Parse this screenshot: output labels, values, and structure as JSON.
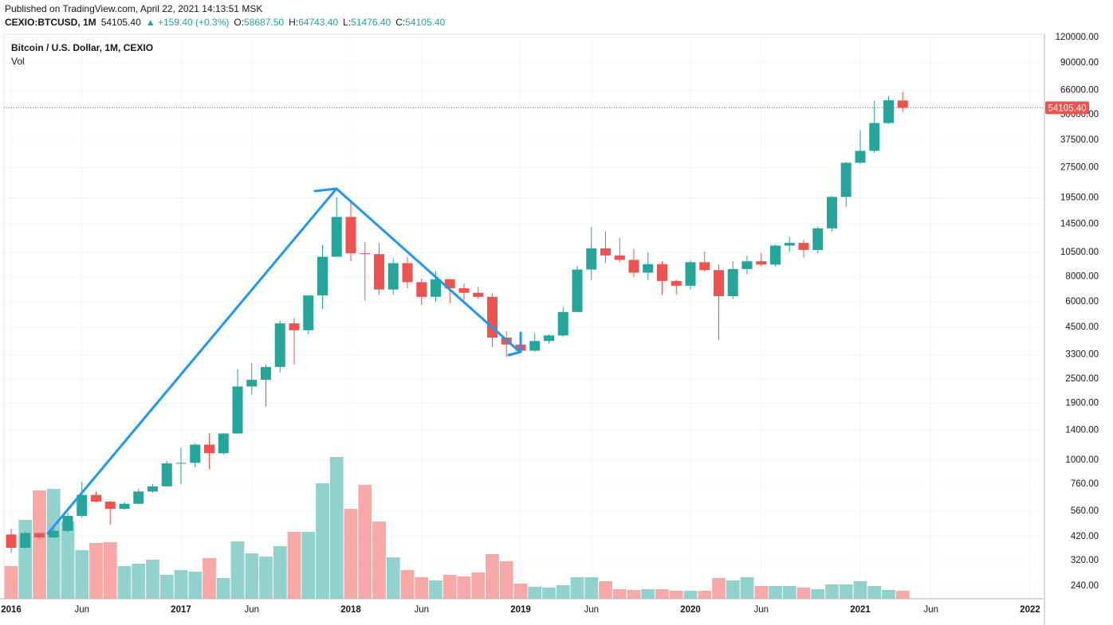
{
  "header": {
    "published": "Published on TradingView.com, April 22, 2021 14:13:51 MSK",
    "symbol": "CEXIO:BTCUSD, 1M",
    "last": "54105.40",
    "change": "▲ +159.40 (+0.3%)",
    "ohlc": [
      {
        "label": "O:",
        "value": "58687.50"
      },
      {
        "label": "H:",
        "value": "64743.40"
      },
      {
        "label": "L:",
        "value": "51476.40"
      },
      {
        "label": "C:",
        "value": "54105.40"
      }
    ]
  },
  "chart_data": {
    "type": "candlestick",
    "title": "Bitcoin / U.S. Dollar, 1M, CEXIO",
    "volume_label": "Vol",
    "up_color": "#26a69a",
    "down_color": "#ef5350",
    "log_scale": true,
    "grid": true,
    "x": [
      "2016-01",
      "2016-02",
      "2016-03",
      "2016-04",
      "2016-05",
      "2016-06",
      "2016-07",
      "2016-08",
      "2016-09",
      "2016-10",
      "2016-11",
      "2016-12",
      "2017-01",
      "2017-02",
      "2017-03",
      "2017-04",
      "2017-05",
      "2017-06",
      "2017-07",
      "2017-08",
      "2017-09",
      "2017-10",
      "2017-11",
      "2017-12",
      "2018-01",
      "2018-02",
      "2018-03",
      "2018-04",
      "2018-05",
      "2018-06",
      "2018-07",
      "2018-08",
      "2018-09",
      "2018-10",
      "2018-11",
      "2018-12",
      "2019-01",
      "2019-02",
      "2019-03",
      "2019-04",
      "2019-05",
      "2019-06",
      "2019-07",
      "2019-08",
      "2019-09",
      "2019-10",
      "2019-11",
      "2019-12",
      "2020-01",
      "2020-02",
      "2020-03",
      "2020-04",
      "2020-05",
      "2020-06",
      "2020-07",
      "2020-08",
      "2020-09",
      "2020-10",
      "2020-11",
      "2020-12",
      "2021-01",
      "2021-02",
      "2021-03",
      "2021-04"
    ],
    "open": [
      430,
      370,
      437,
      416,
      448,
      531,
      673,
      624,
      575,
      609,
      700,
      742,
      963,
      968,
      1190,
      1080,
      1350,
      2300,
      2480,
      2870,
      4700,
      4350,
      6450,
      10000,
      15700,
      10400,
      10300,
      6900,
      9300,
      7500,
      6350,
      7750,
      7000,
      6650,
      6350,
      4000,
      3700,
      3450,
      3850,
      4100,
      5350,
      8650,
      11000,
      10150,
      9650,
      8350,
      9200,
      7600,
      7200,
      9400,
      8600,
      6400,
      8700,
      9500,
      9150,
      11350,
      11700,
      10800,
      13800,
      19700,
      29000,
      33200,
      45500,
      58687.5
    ],
    "high": [
      460,
      445,
      440,
      470,
      550,
      780,
      700,
      630,
      620,
      720,
      760,
      990,
      1150,
      1210,
      1350,
      1360,
      2790,
      3000,
      2950,
      4850,
      5000,
      6450,
      11400,
      19600,
      18900,
      11800,
      11700,
      9800,
      10000,
      7800,
      8500,
      7800,
      7400,
      7100,
      6600,
      4300,
      4200,
      4200,
      4150,
      5650,
      9000,
      14000,
      13300,
      12400,
      10900,
      10500,
      9500,
      7700,
      9600,
      10600,
      9200,
      9500,
      10100,
      10400,
      11500,
      12500,
      12100,
      14100,
      19900,
      29300,
      42000,
      58500,
      61800,
      64743.4
    ],
    "low": [
      350,
      365,
      405,
      412,
      440,
      520,
      620,
      480,
      570,
      605,
      690,
      740,
      760,
      920,
      900,
      1060,
      1350,
      2100,
      1830,
      2700,
      2950,
      4150,
      5550,
      10000,
      9500,
      6100,
      6500,
      6500,
      7000,
      5800,
      6000,
      5900,
      6100,
      6200,
      3600,
      3200,
      3400,
      3400,
      3750,
      4050,
      5350,
      7700,
      9300,
      9400,
      7900,
      7700,
      6500,
      6500,
      6900,
      8450,
      3900,
      6200,
      8200,
      8950,
      8950,
      10550,
      9900,
      10400,
      13300,
      17600,
      28700,
      32400,
      45000,
      51476.4
    ],
    "close": [
      370,
      437,
      416,
      448,
      531,
      673,
      624,
      575,
      609,
      700,
      742,
      963,
      968,
      1190,
      1080,
      1350,
      2300,
      2480,
      2870,
      4700,
      4350,
      6450,
      10000,
      15700,
      10400,
      10300,
      6900,
      9300,
      7500,
      6350,
      7750,
      7000,
      6650,
      6350,
      4000,
      3700,
      3450,
      3850,
      4100,
      5350,
      8650,
      11000,
      10150,
      9650,
      8350,
      9200,
      7600,
      7200,
      9400,
      8600,
      6400,
      8700,
      9500,
      9150,
      11350,
      11700,
      10800,
      13800,
      19700,
      29000,
      33200,
      45500,
      58900,
      54105.4
    ],
    "volume": [
      41,
      99,
      136,
      138,
      97,
      61,
      70,
      71,
      41,
      44,
      49,
      30,
      36,
      34,
      51,
      26,
      72,
      57,
      53,
      66,
      84,
      84,
      145,
      178,
      113,
      143,
      97,
      52,
      36,
      27,
      23,
      30,
      28,
      33,
      56,
      47,
      19,
      15,
      14,
      17,
      27,
      27,
      22,
      12,
      11,
      12,
      12,
      10,
      10,
      10,
      26,
      23,
      27,
      16,
      16,
      16,
      14,
      12,
      18,
      18,
      22,
      16,
      11,
      10
    ],
    "volume_lim": [
      0,
      200
    ],
    "ylim": [
      207.7,
      123300
    ],
    "yticks": [
      {
        "value": 120000,
        "label": "120000.00"
      },
      {
        "value": 90000,
        "label": "90000.00"
      },
      {
        "value": 66000,
        "label": "66000.00"
      },
      {
        "value": 50000,
        "label": "50000.00"
      },
      {
        "value": 37500,
        "label": "37500.00"
      },
      {
        "value": 27500,
        "label": "27500.00"
      },
      {
        "value": 19500,
        "label": "19500.00"
      },
      {
        "value": 14500,
        "label": "14500.00"
      },
      {
        "value": 10500,
        "label": "10500.00"
      },
      {
        "value": 8000,
        "label": "8000.00"
      },
      {
        "value": 6000,
        "label": "6000.00"
      },
      {
        "value": 4500,
        "label": "4500.00"
      },
      {
        "value": 3300,
        "label": "3300.00"
      },
      {
        "value": 2500,
        "label": "2500.00"
      },
      {
        "value": 1900,
        "label": "1900.00"
      },
      {
        "value": 1400,
        "label": "1400.00"
      },
      {
        "value": 1000,
        "label": "1000.00"
      },
      {
        "value": 760,
        "label": "760.00"
      },
      {
        "value": 560,
        "label": "560.00"
      },
      {
        "value": 420,
        "label": "420.00"
      },
      {
        "value": 320,
        "label": "320.00"
      },
      {
        "value": 240,
        "label": "240.00"
      }
    ],
    "xticks": [
      {
        "value": "2016-01",
        "label": "2016"
      },
      {
        "value": "2016-06",
        "label": "Jun"
      },
      {
        "value": "2017-01",
        "label": "2017"
      },
      {
        "value": "2017-06",
        "label": "Jun"
      },
      {
        "value": "2018-01",
        "label": "2018"
      },
      {
        "value": "2018-06",
        "label": "Jun"
      },
      {
        "value": "2019-01",
        "label": "2019"
      },
      {
        "value": "2019-06",
        "label": "Jun"
      },
      {
        "value": "2020-01",
        "label": "2020"
      },
      {
        "value": "2020-06",
        "label": "Jun"
      },
      {
        "value": "2021-01",
        "label": "2021"
      },
      {
        "value": "2021-06",
        "label": "Jun"
      },
      {
        "value": "2022-01",
        "label": "2022"
      }
    ],
    "last_price": {
      "value": 54105.4,
      "label": "54105.40",
      "color": "#ef5350"
    }
  }
}
